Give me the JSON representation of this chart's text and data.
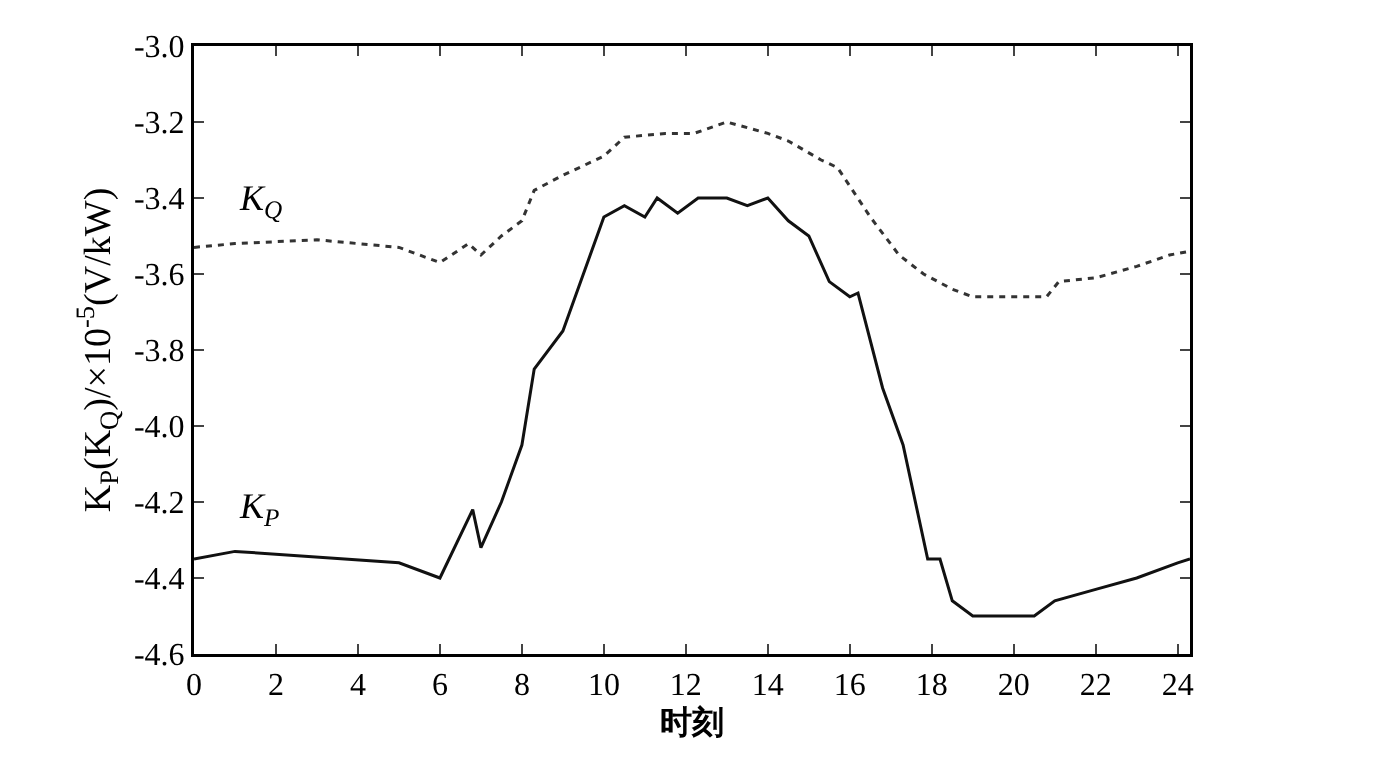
{
  "chart_data": {
    "type": "line",
    "xlabel": "时刻",
    "ylabel": "K$_{P}$(K$_{Q}$)/×10$^{-5}$(V/kW)",
    "xlim": [
      0,
      24.3
    ],
    "xticks": [
      0,
      2,
      4,
      6,
      8,
      10,
      12,
      14,
      16,
      18,
      20,
      22,
      24
    ],
    "ylim": [
      -4.6,
      -3.0
    ],
    "yticks": [
      -4.6,
      -4.4,
      -4.2,
      {
        "value": -4,
        "label": "-4.0"
      },
      -3.8,
      -3.6,
      -3.4,
      -3.2,
      {
        "value": -3,
        "label": "-3.0"
      }
    ],
    "grid": false,
    "legend": false,
    "marker": "none",
    "series": [
      {
        "name": "K$_{Q}$",
        "color": "#333333",
        "line_style": "dotted",
        "x": [
          0,
          1,
          3,
          5,
          6,
          6.7,
          7,
          7.5,
          8,
          8.3,
          9,
          10,
          10.5,
          11.5,
          12.2,
          13,
          14,
          14.5,
          15.3,
          15.7,
          16.5,
          17.2,
          17.8,
          18.5,
          19,
          20.8,
          21.1,
          22,
          23,
          23.8,
          24.3
        ],
        "values": [
          -3.53,
          -3.52,
          -3.51,
          -3.53,
          -3.57,
          -3.52,
          -3.55,
          -3.5,
          -3.46,
          -3.38,
          -3.34,
          -3.29,
          -3.24,
          -3.23,
          -3.23,
          -3.2,
          -3.23,
          -3.25,
          -3.3,
          -3.32,
          -3.45,
          -3.55,
          -3.6,
          -3.64,
          -3.66,
          -3.66,
          -3.62,
          -3.61,
          -3.58,
          -3.55,
          -3.54
        ]
      },
      {
        "name": "K$_{P}$",
        "color": "#111111",
        "line_style": "solid",
        "x": [
          0,
          1,
          5,
          6,
          6.8,
          7,
          7.5,
          8,
          8.3,
          9,
          9.5,
          10,
          10.5,
          11,
          11.3,
          11.8,
          12.3,
          13,
          13.5,
          14,
          14.5,
          15,
          15.5,
          16,
          16.2,
          16.8,
          17.3,
          17.9,
          18.2,
          18.5,
          19,
          20.5,
          21,
          22,
          23,
          24,
          24.3
        ],
        "values": [
          -4.35,
          -4.33,
          -4.36,
          -4.4,
          -4.22,
          -4.32,
          -4.2,
          -4.05,
          -3.85,
          -3.75,
          -3.6,
          -3.45,
          -3.42,
          -3.45,
          -3.4,
          -3.44,
          -3.4,
          -3.4,
          -3.42,
          -3.4,
          -3.46,
          -3.5,
          -3.62,
          -3.66,
          -3.65,
          -3.9,
          -4.05,
          -4.35,
          -4.35,
          -4.46,
          -4.5,
          -4.5,
          -4.46,
          -4.43,
          -4.4,
          -4.36,
          -4.35
        ]
      }
    ]
  }
}
